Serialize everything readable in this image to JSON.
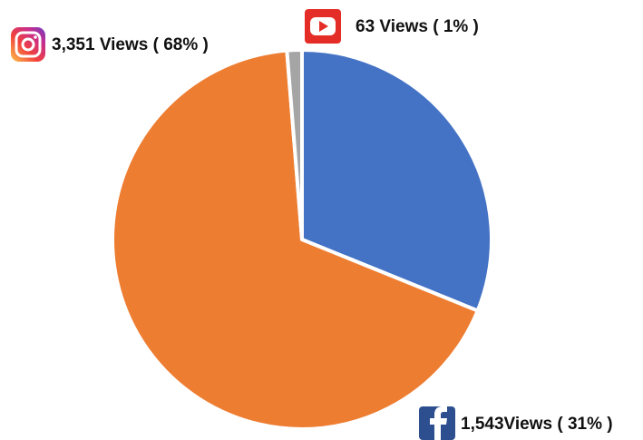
{
  "chart_data": {
    "type": "pie",
    "values": [
      1543,
      3351,
      63
    ],
    "value_labels": [
      "1,543Views ( 31% )",
      "3,351 Views ( 68% )",
      "63 Views ( 1% )"
    ],
    "colors": [
      "#4472c4",
      "#ed7d31",
      "#a5a5a5"
    ]
  }
}
